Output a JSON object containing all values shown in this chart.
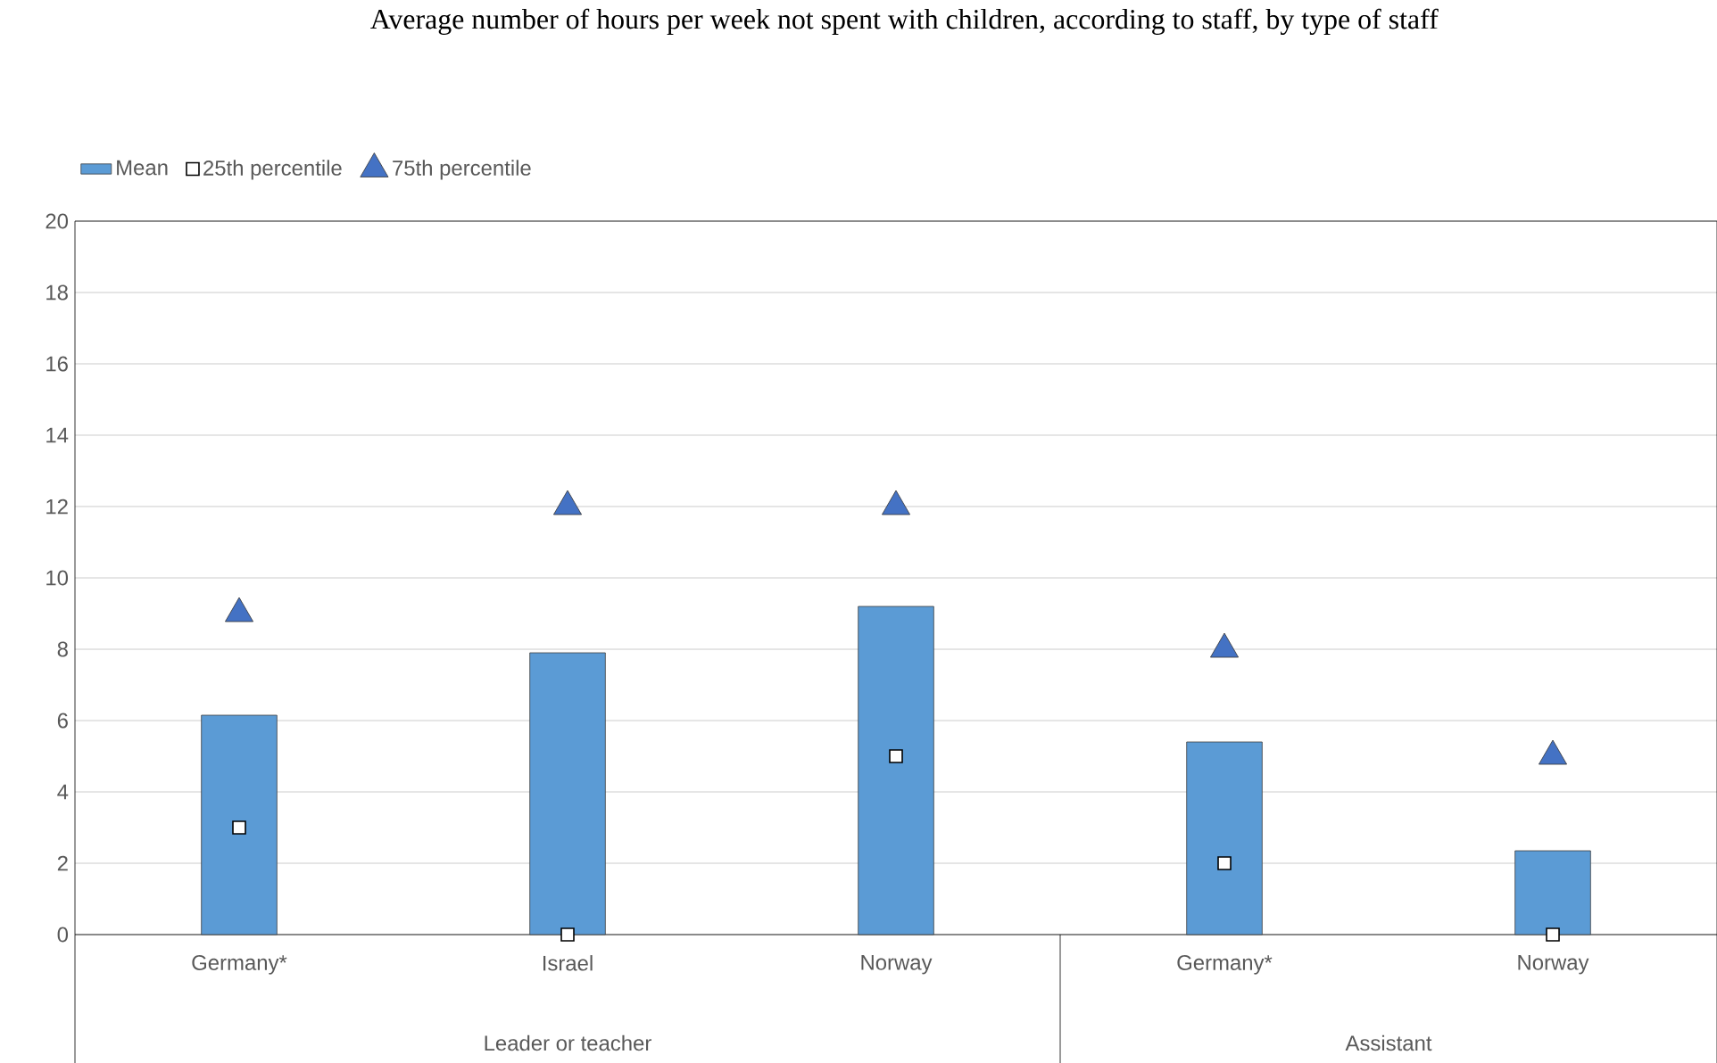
{
  "chart_data": {
    "type": "bar",
    "title": "Average number of hours per week not spent with children, according to staff, by type of staff",
    "categories": [
      "Germany*",
      "Israel",
      "Norway",
      "Germany*",
      "Norway"
    ],
    "series": [
      {
        "name": "Mean",
        "color": "#5b9bd5",
        "values": [
          6.15,
          7.9,
          9.2,
          5.4,
          2.35
        ]
      },
      {
        "name": "25th percentile",
        "type": "scatter",
        "marker": "square",
        "color": "#ffffff",
        "values": [
          3,
          0,
          5,
          2,
          0
        ]
      },
      {
        "name": "75th percentile",
        "type": "scatter",
        "marker": "triangle",
        "color": "#4472c4",
        "values": [
          9,
          12,
          12,
          8,
          5
        ]
      }
    ],
    "annotations": [
      "Leader or teacher",
      "Assistant"
    ],
    "ylim": [
      0,
      20
    ],
    "yticks": [
      0,
      2,
      4,
      6,
      8,
      10,
      12,
      14,
      16,
      18,
      20
    ],
    "grid": "y",
    "legend": "top left"
  }
}
